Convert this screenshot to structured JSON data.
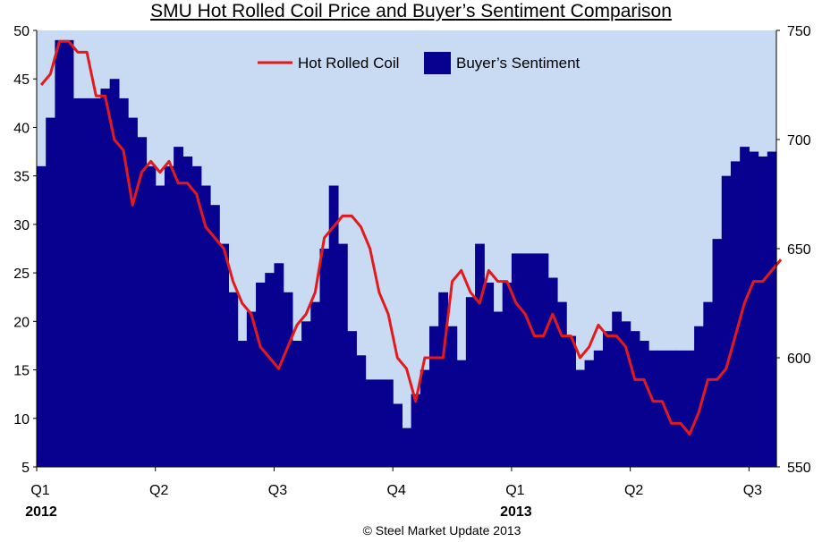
{
  "chart_data": {
    "type": "bar+line",
    "title": "SMU Hot Rolled Coil Price and Buyer’s Sentiment Comparison",
    "legend_placement": "top-center",
    "grid": false,
    "colors": {
      "plot_background": "#c9daf3",
      "sentiment_bars": "#08008f",
      "hrc_line": "#e31a1c"
    },
    "y_left": {
      "ylim": [
        5,
        50
      ],
      "ticks": [
        "5",
        "10",
        "15",
        "20",
        "25",
        "30",
        "35",
        "40",
        "45",
        "50"
      ]
    },
    "y_right": {
      "ylim": [
        550,
        750
      ],
      "ticks": [
        "550",
        "600",
        "650",
        "700",
        "750"
      ]
    },
    "x_ticks": [
      "Q1",
      "Q2",
      "Q3",
      "Q4",
      "Q1",
      "Q2",
      "Q3"
    ],
    "x_tick_periods": [
      0,
      13,
      26,
      39,
      52,
      65,
      78
    ],
    "years": [
      {
        "label": "2012",
        "period": 0
      },
      {
        "label": "2013",
        "period": 52
      }
    ],
    "series": [
      {
        "name": "Buyer’s Sentiment",
        "axis": "left",
        "kind": "bar",
        "values": [
          36,
          41,
          49,
          49,
          43,
          43,
          43,
          44,
          45,
          43,
          41,
          39,
          36,
          34,
          36,
          38,
          37,
          36,
          34,
          32,
          28,
          23,
          18,
          21,
          24,
          25,
          26,
          23,
          18,
          20,
          22,
          27.5,
          34,
          28,
          19,
          16.5,
          14,
          14,
          14,
          11.5,
          9,
          12.5,
          15,
          19.5,
          23,
          19.5,
          16,
          22.5,
          28,
          24,
          21,
          24,
          27,
          27,
          27,
          27,
          24.5,
          22,
          18.5,
          15,
          16,
          17,
          19,
          21,
          20,
          19,
          18,
          17,
          17,
          17,
          17,
          17,
          19.5,
          22,
          28.5,
          35,
          36.5,
          38,
          37.5,
          37,
          37.5
        ]
      },
      {
        "name": "Hot Rolled Coil",
        "axis": "right",
        "kind": "line",
        "values": [
          725,
          730,
          745,
          745,
          740,
          740,
          720,
          720,
          700,
          695,
          670,
          685,
          690,
          685,
          690,
          680,
          680,
          675,
          660,
          655,
          650,
          635,
          625,
          620,
          605,
          600,
          595,
          605,
          615,
          620,
          630,
          655,
          660,
          665,
          665,
          660,
          650,
          630,
          620,
          600,
          595,
          580,
          600,
          600,
          600,
          635,
          640,
          630,
          625,
          640,
          635,
          635,
          625,
          620,
          610,
          610,
          620,
          610,
          610,
          600,
          605,
          615,
          610,
          610,
          605,
          590,
          590,
          580,
          580,
          570,
          570,
          565,
          575,
          590,
          590,
          595,
          610,
          625,
          635,
          635,
          640,
          645
        ]
      }
    ]
  },
  "footer": "© Steel Market Update 2013"
}
